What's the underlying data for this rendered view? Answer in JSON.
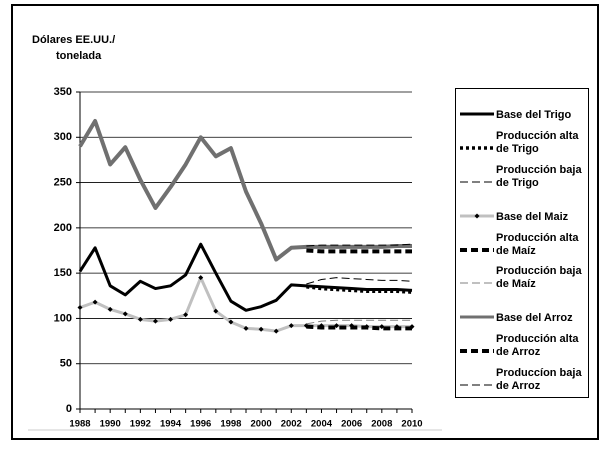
{
  "chart_data": {
    "type": "line",
    "ylabel": [
      "Dólares EE.UU./",
      "tonelada"
    ],
    "x": [
      1988,
      1989,
      1990,
      1991,
      1992,
      1993,
      1994,
      1995,
      1996,
      1997,
      1998,
      1999,
      2000,
      2001,
      2002,
      2003,
      2004,
      2005,
      2006,
      2007,
      2008,
      2009,
      2010
    ],
    "xlim": [
      1988,
      2010
    ],
    "xticks": [
      1988,
      1990,
      1992,
      1994,
      1996,
      1998,
      2000,
      2002,
      2004,
      2006,
      2008,
      2010
    ],
    "ylim": [
      0,
      350
    ],
    "yticks": [
      0,
      50,
      100,
      150,
      200,
      250,
      300,
      350
    ],
    "grid": true,
    "legend": "right",
    "series": [
      {
        "name": "Base del Trigo",
        "color": "#000000",
        "line_style": "solid",
        "values": [
          152,
          178,
          136,
          126,
          141,
          133,
          136,
          148,
          182,
          150,
          119,
          109,
          113,
          120,
          137,
          136,
          135,
          134,
          133,
          132,
          132,
          132,
          131
        ]
      },
      {
        "name": "Producción alta de Trigo",
        "color": "#000000",
        "line_style": "dotted",
        "values": [
          null,
          null,
          null,
          null,
          null,
          null,
          null,
          null,
          null,
          null,
          null,
          null,
          null,
          null,
          null,
          135,
          133,
          132,
          131,
          130,
          130,
          130,
          129
        ]
      },
      {
        "name": "Producción baja de Trigo",
        "color": "#000000",
        "line_style": "thin-dashed",
        "values": [
          null,
          null,
          null,
          null,
          null,
          null,
          null,
          null,
          null,
          null,
          null,
          null,
          null,
          null,
          null,
          138,
          143,
          145,
          144,
          143,
          142,
          142,
          141
        ]
      },
      {
        "name": "Base del Maiz",
        "color": "#c0c0c0",
        "line_style": "solid",
        "marker": "diamond",
        "values": [
          112,
          118,
          110,
          105,
          99,
          97,
          99,
          104,
          145,
          108,
          96,
          89,
          88,
          86,
          92,
          92,
          92,
          92,
          92,
          91,
          91,
          91,
          91
        ]
      },
      {
        "name": "Producción alta de Maíz",
        "color": "#000000",
        "line_style": "dashed",
        "values": [
          null,
          null,
          null,
          null,
          null,
          null,
          null,
          null,
          null,
          null,
          null,
          null,
          null,
          null,
          null,
          91,
          90,
          90,
          90,
          90,
          89,
          89,
          89
        ]
      },
      {
        "name": "Producción baja de Maíz",
        "color": "#808080",
        "line_style": "thin-dashed",
        "values": [
          null,
          null,
          null,
          null,
          null,
          null,
          null,
          null,
          null,
          null,
          null,
          null,
          null,
          null,
          null,
          94,
          97,
          98,
          98,
          98,
          98,
          98,
          98
        ]
      },
      {
        "name": "Base del Arroz",
        "color": "#707070",
        "line_style": "solid",
        "values": [
          290,
          318,
          270,
          289,
          253,
          222,
          245,
          270,
          300,
          279,
          288,
          240,
          205,
          165,
          178,
          179,
          179,
          179,
          179,
          179,
          179,
          180,
          180
        ]
      },
      {
        "name": "Producción alta de Arroz",
        "color": "#000000",
        "line_style": "dashed",
        "values": [
          null,
          null,
          null,
          null,
          null,
          null,
          null,
          null,
          null,
          null,
          null,
          null,
          null,
          null,
          null,
          175,
          174,
          174,
          174,
          174,
          174,
          174,
          174
        ]
      },
      {
        "name": "Produccíon baja de Arroz",
        "color": "#000000",
        "line_style": "thin-dashed",
        "values": [
          null,
          null,
          null,
          null,
          null,
          null,
          null,
          null,
          null,
          null,
          null,
          null,
          null,
          null,
          null,
          180,
          181,
          181,
          181,
          181,
          181,
          181,
          182
        ]
      }
    ]
  }
}
